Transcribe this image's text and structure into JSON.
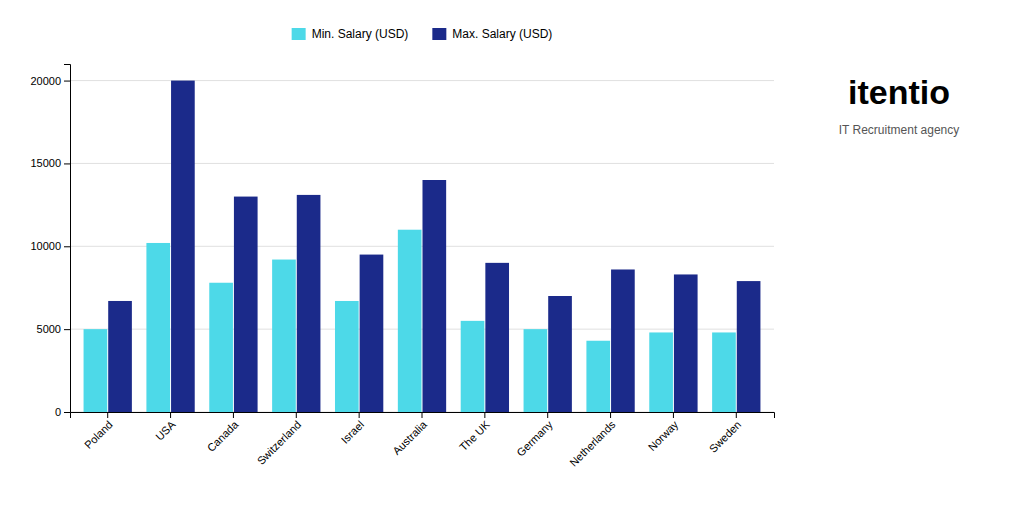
{
  "chart_data": {
    "type": "bar",
    "title": "itentio",
    "subtitle": "IT Recruitment agency",
    "categories": [
      "Poland",
      "USA",
      "Canada",
      "Switzerland",
      "Israel",
      "Australia",
      "The UK",
      "Germany",
      "Netherlands",
      "Norway",
      "Sweden"
    ],
    "series": [
      {
        "name": "Min. Salary (USD)",
        "color": "#4DD9E8",
        "values": [
          5000,
          10200,
          7800,
          9200,
          6700,
          11000,
          5500,
          5000,
          4300,
          4800,
          4800
        ]
      },
      {
        "name": "Max. Salary (USD)",
        "color": "#1B2A8A",
        "values": [
          6700,
          20000,
          13000,
          13100,
          9500,
          14000,
          9000,
          7000,
          8600,
          8300,
          7900
        ]
      }
    ],
    "ylim": [
      0,
      21000
    ],
    "yticks": [
      0,
      5000,
      10000,
      15000,
      20000
    ],
    "grid": true,
    "legend": "top"
  }
}
